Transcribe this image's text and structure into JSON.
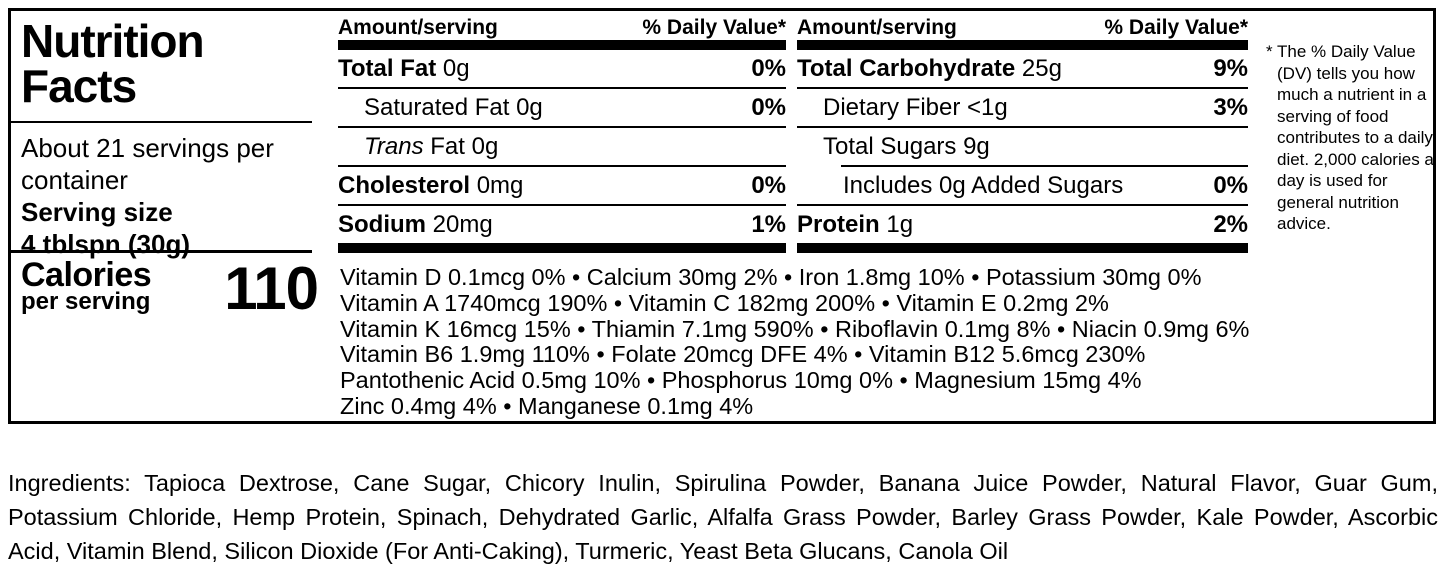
{
  "panel": {
    "title_line1": "Nutrition",
    "title_line2": "Facts",
    "servings_per_container": "About 21 servings per container",
    "serving_size_label": "Serving size",
    "serving_size_value": "4 tblspn (30g)",
    "calories_label": "Calories",
    "calories_sublabel": "per serving",
    "calories_value": "110"
  },
  "columns": [
    {
      "amount_header": "Amount/serving",
      "dv_header": "% Daily Value*",
      "rows": [
        {
          "bold": "Total Fat",
          "italic": "",
          "text": " 0g",
          "dv": "0%"
        },
        {
          "bold": "",
          "italic": "",
          "text": "Saturated Fat 0g",
          "dv": "0%"
        },
        {
          "bold": "",
          "italic": "Trans",
          "text": " Fat 0g",
          "dv": ""
        },
        {
          "bold": "Cholesterol",
          "italic": "",
          "text": " 0mg",
          "dv": "0%"
        },
        {
          "bold": "Sodium",
          "italic": "",
          "text": " 20mg",
          "dv": "1%"
        }
      ]
    },
    {
      "amount_header": "Amount/serving",
      "dv_header": "% Daily Value*",
      "rows": [
        {
          "bold": "Total Carbohydrate",
          "italic": "",
          "text": " 25g",
          "dv": "9%"
        },
        {
          "bold": "",
          "italic": "",
          "text": "Dietary Fiber <1g",
          "dv": "3%"
        },
        {
          "bold": "",
          "italic": "",
          "text": "Total Sugars 9g",
          "dv": ""
        },
        {
          "bold": "",
          "italic": "",
          "text": "Includes 0g Added Sugars",
          "dv": "0%"
        },
        {
          "bold": "Protein",
          "italic": "",
          "text": " 1g",
          "dv": "2%"
        }
      ]
    }
  ],
  "micronutrients": [
    "Vitamin D 0.1mcg 0% • Calcium 30mg 2% • Iron 1.8mg 10% • Potassium 30mg 0%",
    "Vitamin A 1740mcg 190% • Vitamin C 182mg 200% • Vitamin E 0.2mg 2%",
    "Vitamin K 16mcg 15% • Thiamin 7.1mg 590% • Riboflavin 0.1mg 8% • Niacin 0.9mg 6%",
    "Vitamin B6 1.9mg 110% • Folate 20mcg DFE 4% • Vitamin B12 5.6mcg 230%",
    "Pantothenic Acid 0.5mg 10% • Phosphorus 10mg 0% • Magnesium 15mg 4%",
    "Zinc 0.4mg 4% • Manganese 0.1mg 4%"
  ],
  "footnote": "* The % Daily Value (DV) tells you how much a nutrient in a serving of food contributes to a daily diet. 2,000 calories a day is used for general nutrition advice.",
  "ingredients": "Ingredients: Tapioca Dextrose, Cane Sugar, Chicory Inulin, Spirulina Powder, Banana Juice Powder, Natural Flavor, Guar Gum, Potassium Chloride, Hemp Protein, Spinach, Dehydrated Garlic, Alfalfa Grass Powder, Barley Grass Powder, Kale Powder, Ascorbic Acid, Vitamin Blend, Silicon Dioxide (For Anti-Caking), Turmeric, Yeast Beta Glucans, Canola Oil",
  "colors": {
    "ink": "#000000",
    "background": "#ffffff"
  }
}
